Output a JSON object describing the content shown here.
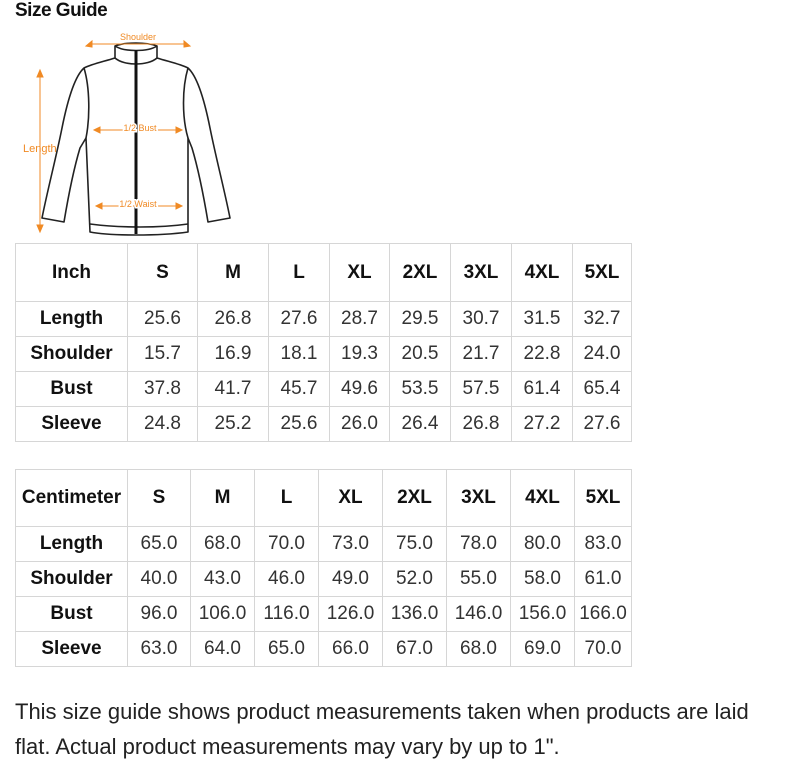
{
  "title": "Size Guide",
  "diagram": {
    "shoulder_label": "Shoulder",
    "length_label": "Length",
    "bust_label": "1/2 Bust",
    "waist_label": "1/2 Waist",
    "accent_color": "#f08a24"
  },
  "inch_table": {
    "corner": "Inch",
    "sizes": [
      "S",
      "M",
      "L",
      "XL",
      "2XL",
      "3XL",
      "4XL",
      "5XL"
    ],
    "rows": [
      {
        "label": "Length",
        "values": [
          "25.6",
          "26.8",
          "27.6",
          "28.7",
          "29.5",
          "30.7",
          "31.5",
          "32.7"
        ]
      },
      {
        "label": "Shoulder",
        "values": [
          "15.7",
          "16.9",
          "18.1",
          "19.3",
          "20.5",
          "21.7",
          "22.8",
          "24.0"
        ]
      },
      {
        "label": "Bust",
        "values": [
          "37.8",
          "41.7",
          "45.7",
          "49.6",
          "53.5",
          "57.5",
          "61.4",
          "65.4"
        ]
      },
      {
        "label": "Sleeve",
        "values": [
          "24.8",
          "25.2",
          "25.6",
          "26.0",
          "26.4",
          "26.8",
          "27.2",
          "27.6"
        ]
      }
    ]
  },
  "cm_table": {
    "corner": "Centimeter",
    "sizes": [
      "S",
      "M",
      "L",
      "XL",
      "2XL",
      "3XL",
      "4XL",
      "5XL"
    ],
    "rows": [
      {
        "label": "Length",
        "values": [
          "65.0",
          "68.0",
          "70.0",
          "73.0",
          "75.0",
          "78.0",
          "80.0",
          "83.0"
        ]
      },
      {
        "label": "Shoulder",
        "values": [
          "40.0",
          "43.0",
          "46.0",
          "49.0",
          "52.0",
          "55.0",
          "58.0",
          "61.0"
        ]
      },
      {
        "label": "Bust",
        "values": [
          "96.0",
          "106.0",
          "116.0",
          "126.0",
          "136.0",
          "146.0",
          "156.0",
          "166.0"
        ]
      },
      {
        "label": "Sleeve",
        "values": [
          "63.0",
          "64.0",
          "65.0",
          "66.0",
          "67.0",
          "68.0",
          "69.0",
          "70.0"
        ]
      }
    ]
  },
  "note": "This size guide shows product measurements taken when products are laid flat. Actual product measurements may vary by up to 1\"."
}
